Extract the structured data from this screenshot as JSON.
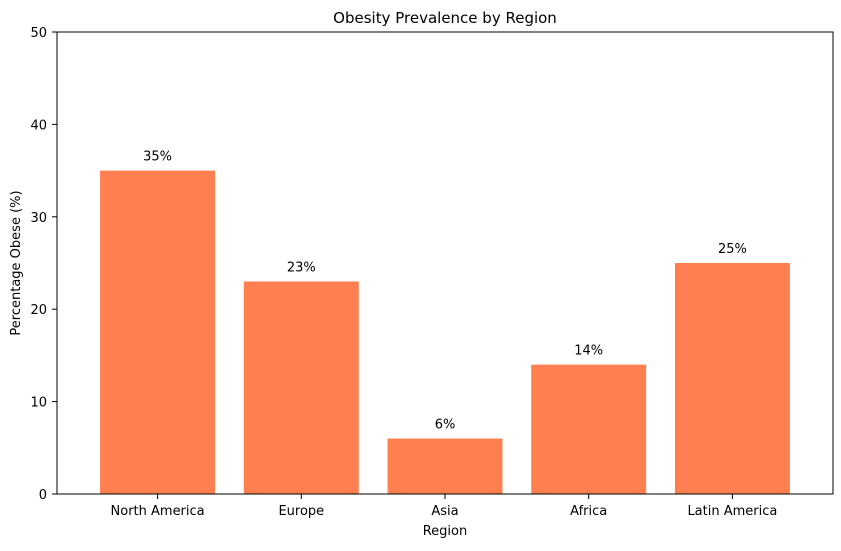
{
  "chart_data": {
    "type": "bar",
    "title": "Obesity Prevalence by Region",
    "xlabel": "Region",
    "ylabel": "Percentage Obese (%)",
    "categories": [
      "North America",
      "Europe",
      "Asia",
      "Africa",
      "Latin America"
    ],
    "values": [
      35,
      23,
      6,
      14,
      25
    ],
    "data_labels": [
      "35%",
      "23%",
      "6%",
      "14%",
      "25%"
    ],
    "ylim": [
      0,
      50
    ],
    "yticks": [
      0,
      10,
      20,
      30,
      40,
      50
    ],
    "ytick_labels": [
      "0",
      "10",
      "20",
      "30",
      "40",
      "50"
    ],
    "grid": false,
    "bar_color": "#FF7F50"
  }
}
